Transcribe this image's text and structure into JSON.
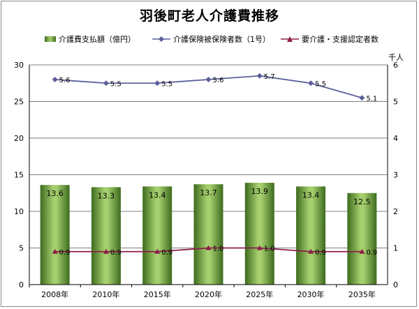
{
  "title": "羽後町老人介護費推移",
  "legend": {
    "bar_label": "介護費支払額（億円）",
    "line1_label": "介護保険被保険者数（1号）",
    "line2_label": "要介護・支援認定者数"
  },
  "right_axis_unit": "千人",
  "colors": {
    "bar_dark": "#3d6b1e",
    "bar_light": "#a6cf6e",
    "line1": "#5b5f9b",
    "line2": "#8b1d4a",
    "grid": "#7f7f7f"
  },
  "chart_data": {
    "type": "bar",
    "categories": [
      "2008年",
      "2010年",
      "2015年",
      "2020年",
      "2025年",
      "2030年",
      "2035年"
    ],
    "series": [
      {
        "name": "介護費支払額（億円）",
        "type": "bar",
        "axis": "left",
        "values": [
          13.6,
          13.3,
          13.4,
          13.7,
          13.9,
          13.4,
          12.5
        ],
        "labels": [
          "13.6",
          "13.3",
          "13.4",
          "13.7",
          "13.9",
          "13.4",
          "12.5"
        ]
      },
      {
        "name": "介護保険被保険者数（1号）",
        "type": "line",
        "axis": "right",
        "values": [
          5.6,
          5.5,
          5.5,
          5.6,
          5.7,
          5.5,
          5.1
        ],
        "labels": [
          "5.6",
          "5.5",
          "5.5",
          "5.6",
          "5.7",
          "5.5",
          "5.1"
        ]
      },
      {
        "name": "要介護・支援認定者数",
        "type": "line",
        "axis": "right",
        "values": [
          0.9,
          0.9,
          0.9,
          1.0,
          1.0,
          0.9,
          0.9
        ],
        "labels": [
          "0.9",
          "0.9",
          "0.9",
          "1.0",
          "1.0",
          "0.9",
          "0.9"
        ]
      }
    ],
    "left_axis": {
      "ylim": [
        0,
        30
      ],
      "ticks": [
        "0",
        "5",
        "10",
        "15",
        "20",
        "25",
        "30"
      ]
    },
    "right_axis": {
      "ylim": [
        0,
        6
      ],
      "ticks": [
        "0",
        "1",
        "2",
        "3",
        "4",
        "5",
        "6"
      ]
    },
    "grid": true,
    "legend_position": "top"
  }
}
